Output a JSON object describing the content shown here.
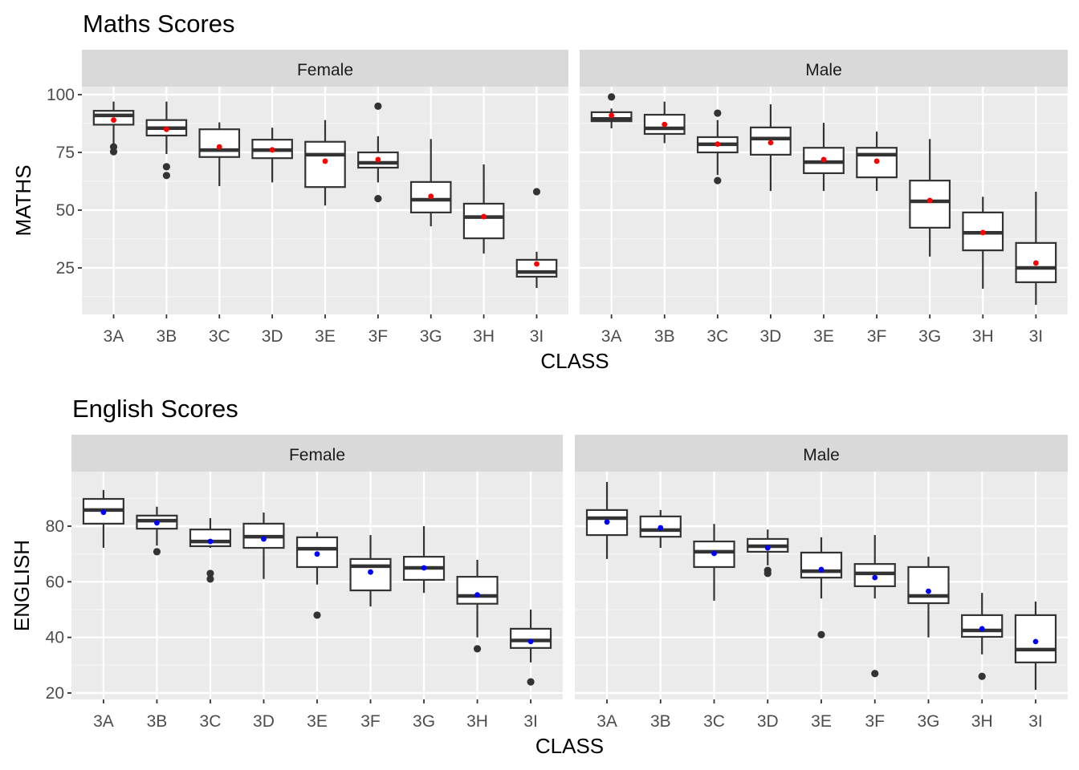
{
  "chart_data": [
    {
      "type": "boxplot",
      "title": "Maths Scores",
      "xlabel": "CLASS",
      "ylabel": "MATHS",
      "ylim": [
        6,
        105
      ],
      "yticks": [
        25,
        50,
        75,
        100
      ],
      "grid": true,
      "mean_color": "#ff0000",
      "categories": [
        "3A",
        "3B",
        "3C",
        "3D",
        "3E",
        "3F",
        "3G",
        "3H",
        "3I"
      ],
      "facets": [
        {
          "label": "Female",
          "boxes": [
            {
              "class": "3A",
              "lower": 78.5,
              "q1": 87,
              "median": 91,
              "q3": 93,
              "upper": 97,
              "mean": 89,
              "outliers": [
                77.4,
                75.3
              ]
            },
            {
              "class": "3B",
              "lower": 74.3,
              "q1": 82.3,
              "median": 85.5,
              "q3": 89,
              "upper": 97,
              "mean": 85,
              "outliers": [
                68.8,
                65
              ]
            },
            {
              "class": "3C",
              "lower": 60.4,
              "q1": 73,
              "median": 76,
              "q3": 85,
              "upper": 88,
              "mean": 77.4,
              "outliers": []
            },
            {
              "class": "3D",
              "lower": 62,
              "q1": 72.5,
              "median": 76,
              "q3": 80.5,
              "upper": 85.7,
              "mean": 76.1,
              "outliers": []
            },
            {
              "class": "3E",
              "lower": 52,
              "q1": 60,
              "median": 74,
              "q3": 79.6,
              "upper": 89,
              "mean": 71.2,
              "outliers": []
            },
            {
              "class": "3F",
              "lower": 62,
              "q1": 68.4,
              "median": 70.5,
              "q3": 75,
              "upper": 82,
              "mean": 71.9,
              "outliers": [
                95,
                55
              ]
            },
            {
              "class": "3G",
              "lower": 43,
              "q1": 49,
              "median": 54.5,
              "q3": 62.2,
              "upper": 80.8,
              "mean": 56,
              "outliers": []
            },
            {
              "class": "3H",
              "lower": 31.2,
              "q1": 37.8,
              "median": 47,
              "q3": 52.8,
              "upper": 69.8,
              "mean": 47.2,
              "outliers": []
            },
            {
              "class": "3I",
              "lower": 16.3,
              "q1": 21.2,
              "median": 23.2,
              "q3": 28.5,
              "upper": 32,
              "mean": 26.7,
              "outliers": [
                58
              ]
            }
          ]
        },
        {
          "label": "Male",
          "boxes": [
            {
              "class": "3A",
              "lower": 85.4,
              "q1": 88.5,
              "median": 89.5,
              "q3": 92.4,
              "upper": 94,
              "mean": 91,
              "outliers": [
                99
              ]
            },
            {
              "class": "3B",
              "lower": 79,
              "q1": 83,
              "median": 85.4,
              "q3": 91.3,
              "upper": 97,
              "mean": 87.1,
              "outliers": []
            },
            {
              "class": "3C",
              "lower": 65.2,
              "q1": 75,
              "median": 78.5,
              "q3": 81.6,
              "upper": 89,
              "mean": 78.6,
              "outliers": [
                92,
                62.8
              ]
            },
            {
              "class": "3D",
              "lower": 58.3,
              "q1": 74,
              "median": 81,
              "q3": 85.8,
              "upper": 95.8,
              "mean": 79.2,
              "outliers": []
            },
            {
              "class": "3E",
              "lower": 58.3,
              "q1": 66,
              "median": 70.8,
              "q3": 77,
              "upper": 87.8,
              "mean": 71.9,
              "outliers": []
            },
            {
              "class": "3F",
              "lower": 58.3,
              "q1": 64.2,
              "median": 74,
              "q3": 77,
              "upper": 84,
              "mean": 71.2,
              "outliers": []
            },
            {
              "class": "3G",
              "lower": 29.9,
              "q1": 42.4,
              "median": 53.8,
              "q3": 62.8,
              "upper": 80.8,
              "mean": 54.2,
              "outliers": []
            },
            {
              "class": "3H",
              "lower": 16,
              "q1": 32.6,
              "median": 40.2,
              "q3": 49,
              "upper": 55.8,
              "mean": 40.3,
              "outliers": []
            },
            {
              "class": "3I",
              "lower": 9,
              "q1": 18.8,
              "median": 25,
              "q3": 35.8,
              "upper": 58,
              "mean": 27.1,
              "outliers": []
            }
          ]
        }
      ]
    },
    {
      "type": "boxplot",
      "title": "English Scores",
      "xlabel": "CLASS",
      "ylabel": "ENGLISH",
      "ylim": [
        18,
        99.5
      ],
      "yticks": [
        20,
        40,
        60,
        80
      ],
      "grid": true,
      "mean_color": "#0000ff",
      "categories": [
        "3A",
        "3B",
        "3C",
        "3D",
        "3E",
        "3F",
        "3G",
        "3H",
        "3I"
      ],
      "facets": [
        {
          "label": "Female",
          "boxes": [
            {
              "class": "3A",
              "lower": 72.2,
              "q1": 80.9,
              "median": 85.8,
              "q3": 89.8,
              "upper": 93,
              "mean": 85,
              "outliers": []
            },
            {
              "class": "3B",
              "lower": 73,
              "q1": 79.1,
              "median": 82,
              "q3": 83.8,
              "upper": 87,
              "mean": 81.2,
              "outliers": [
                70.8
              ]
            },
            {
              "class": "3C",
              "lower": 72.2,
              "q1": 72.8,
              "median": 74.5,
              "q3": 78.8,
              "upper": 82.9,
              "mean": 74.5,
              "outliers": [
                63,
                61
              ]
            },
            {
              "class": "3D",
              "lower": 61,
              "q1": 72.2,
              "median": 76.2,
              "q3": 80.9,
              "upper": 84.9,
              "mean": 75.4,
              "outliers": []
            },
            {
              "class": "3E",
              "lower": 59,
              "q1": 65.3,
              "median": 71.9,
              "q3": 76,
              "upper": 77.9,
              "mean": 70,
              "outliers": [
                48
              ]
            },
            {
              "class": "3F",
              "lower": 51.1,
              "q1": 56.9,
              "median": 65.6,
              "q3": 68.2,
              "upper": 76.8,
              "mean": 63.5,
              "outliers": []
            },
            {
              "class": "3G",
              "lower": 56,
              "q1": 60.7,
              "median": 65,
              "q3": 69,
              "upper": 80,
              "mean": 65,
              "outliers": []
            },
            {
              "class": "3H",
              "lower": 40,
              "q1": 52.1,
              "median": 54.9,
              "q3": 61.8,
              "upper": 67.9,
              "mean": 55.3,
              "outliers": [
                35.9
              ]
            },
            {
              "class": "3I",
              "lower": 31,
              "q1": 36.2,
              "median": 38.9,
              "q3": 43.1,
              "upper": 50,
              "mean": 38.5,
              "outliers": [
                24
              ]
            }
          ]
        },
        {
          "label": "Male",
          "boxes": [
            {
              "class": "3A",
              "lower": 68.2,
              "q1": 76.8,
              "median": 82.9,
              "q3": 85.8,
              "upper": 95.9,
              "mean": 81.5,
              "outliers": []
            },
            {
              "class": "3B",
              "lower": 72.2,
              "q1": 76.2,
              "median": 78.6,
              "q3": 83.5,
              "upper": 85.8,
              "mean": 79.4,
              "outliers": []
            },
            {
              "class": "3C",
              "lower": 53.2,
              "q1": 65.3,
              "median": 70.8,
              "q3": 74.5,
              "upper": 80.8,
              "mean": 70.2,
              "outliers": []
            },
            {
              "class": "3D",
              "lower": 65.9,
              "q1": 70.8,
              "median": 72.8,
              "q3": 75.4,
              "upper": 78.8,
              "mean": 72.2,
              "outliers": [
                64.1,
                63
              ]
            },
            {
              "class": "3E",
              "lower": 54,
              "q1": 61.5,
              "median": 63.8,
              "q3": 70.5,
              "upper": 76,
              "mean": 64.4,
              "outliers": [
                41
              ]
            },
            {
              "class": "3F",
              "lower": 54,
              "q1": 58.4,
              "median": 63,
              "q3": 66.4,
              "upper": 76.8,
              "mean": 61.5,
              "outliers": [
                27
              ]
            },
            {
              "class": "3G",
              "lower": 40,
              "q1": 52.3,
              "median": 54.9,
              "q3": 65.3,
              "upper": 69,
              "mean": 56.6,
              "outliers": []
            },
            {
              "class": "3H",
              "lower": 33.9,
              "q1": 40.2,
              "median": 42.5,
              "q3": 48,
              "upper": 56,
              "mean": 43.1,
              "outliers": [
                26
              ]
            },
            {
              "class": "3I",
              "lower": 21.1,
              "q1": 31,
              "median": 35.6,
              "q3": 48,
              "upper": 52.9,
              "mean": 38.5,
              "outliers": []
            }
          ]
        }
      ]
    }
  ]
}
